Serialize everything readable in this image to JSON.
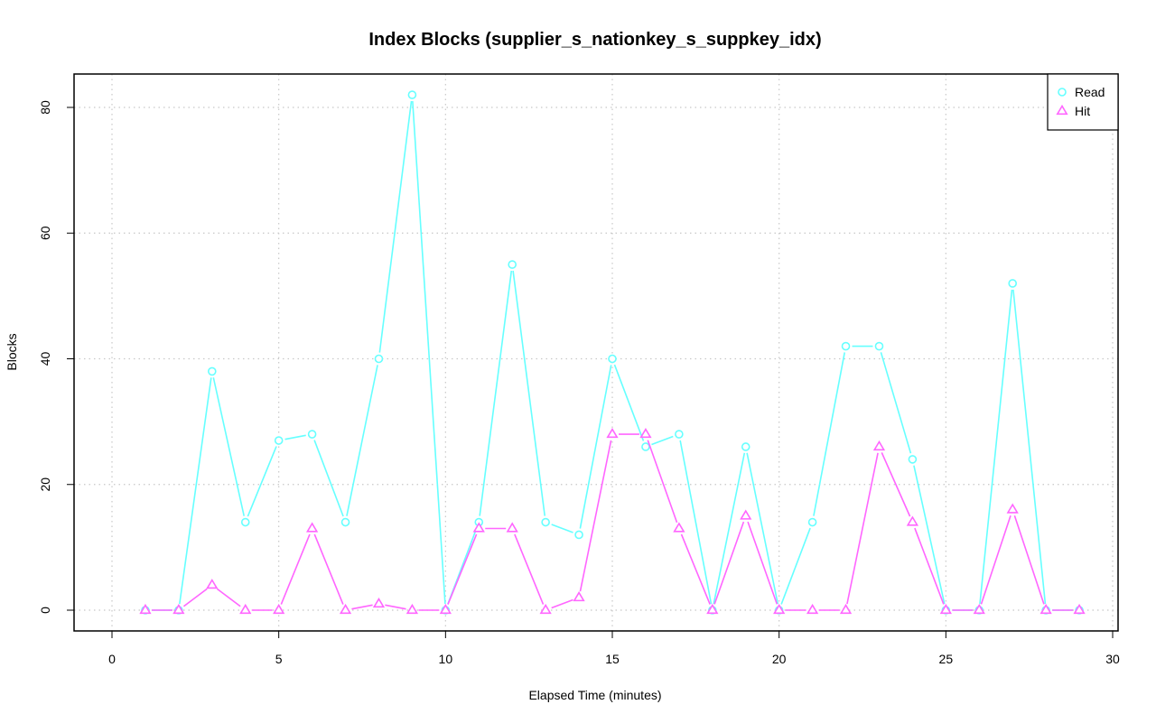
{
  "chart_data": {
    "type": "line",
    "title": "Index Blocks (supplier_s_nationkey_s_suppkey_idx)",
    "xlabel": "Elapsed Time (minutes)",
    "ylabel": "Blocks",
    "xlim": [
      0,
      30
    ],
    "ylim": [
      0,
      80
    ],
    "x_ticks": [
      0,
      5,
      10,
      15,
      20,
      25,
      30
    ],
    "y_ticks": [
      0,
      20,
      40,
      60,
      80
    ],
    "grid": true,
    "legend_position": "top-right",
    "x": [
      1,
      2,
      3,
      4,
      5,
      6,
      7,
      8,
      9,
      10,
      11,
      12,
      13,
      14,
      15,
      16,
      17,
      18,
      19,
      20,
      21,
      22,
      23,
      24,
      25,
      26,
      27,
      28,
      29
    ],
    "series": [
      {
        "name": "Read",
        "color": "#66ffff",
        "marker": "circle",
        "values": [
          0,
          0,
          38,
          14,
          27,
          28,
          14,
          40,
          82,
          0,
          14,
          55,
          14,
          12,
          40,
          26,
          28,
          0,
          26,
          0,
          14,
          42,
          42,
          24,
          0,
          0,
          52,
          0,
          0
        ]
      },
      {
        "name": "Hit",
        "color": "#ff66ff",
        "marker": "triangle",
        "values": [
          0,
          0,
          4,
          0,
          0,
          13,
          0,
          1,
          0,
          0,
          13,
          13,
          0,
          2,
          28,
          28,
          13,
          0,
          15,
          0,
          0,
          0,
          26,
          14,
          0,
          0,
          16,
          0,
          0
        ]
      }
    ]
  }
}
